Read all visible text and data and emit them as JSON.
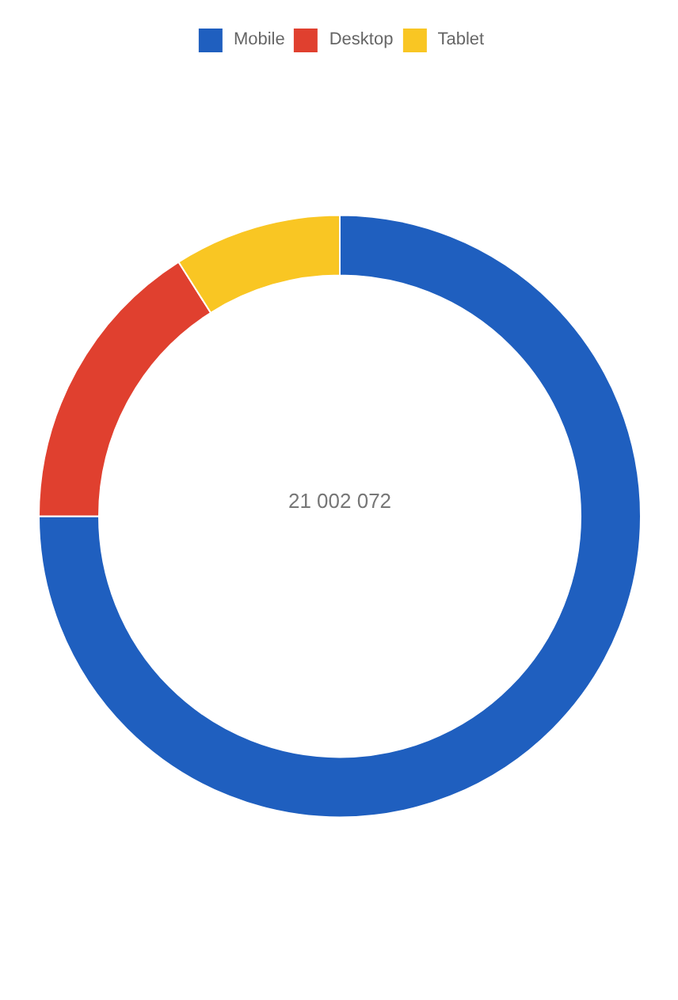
{
  "chart_data": {
    "type": "donut",
    "categories": [
      "Mobile",
      "Desktop",
      "Tablet"
    ],
    "values": [
      75,
      16,
      9
    ],
    "colors": [
      "#1f5fbf",
      "#e0402f",
      "#f9c623"
    ],
    "annotations": [
      "21 002 072"
    ],
    "legend": "top"
  }
}
